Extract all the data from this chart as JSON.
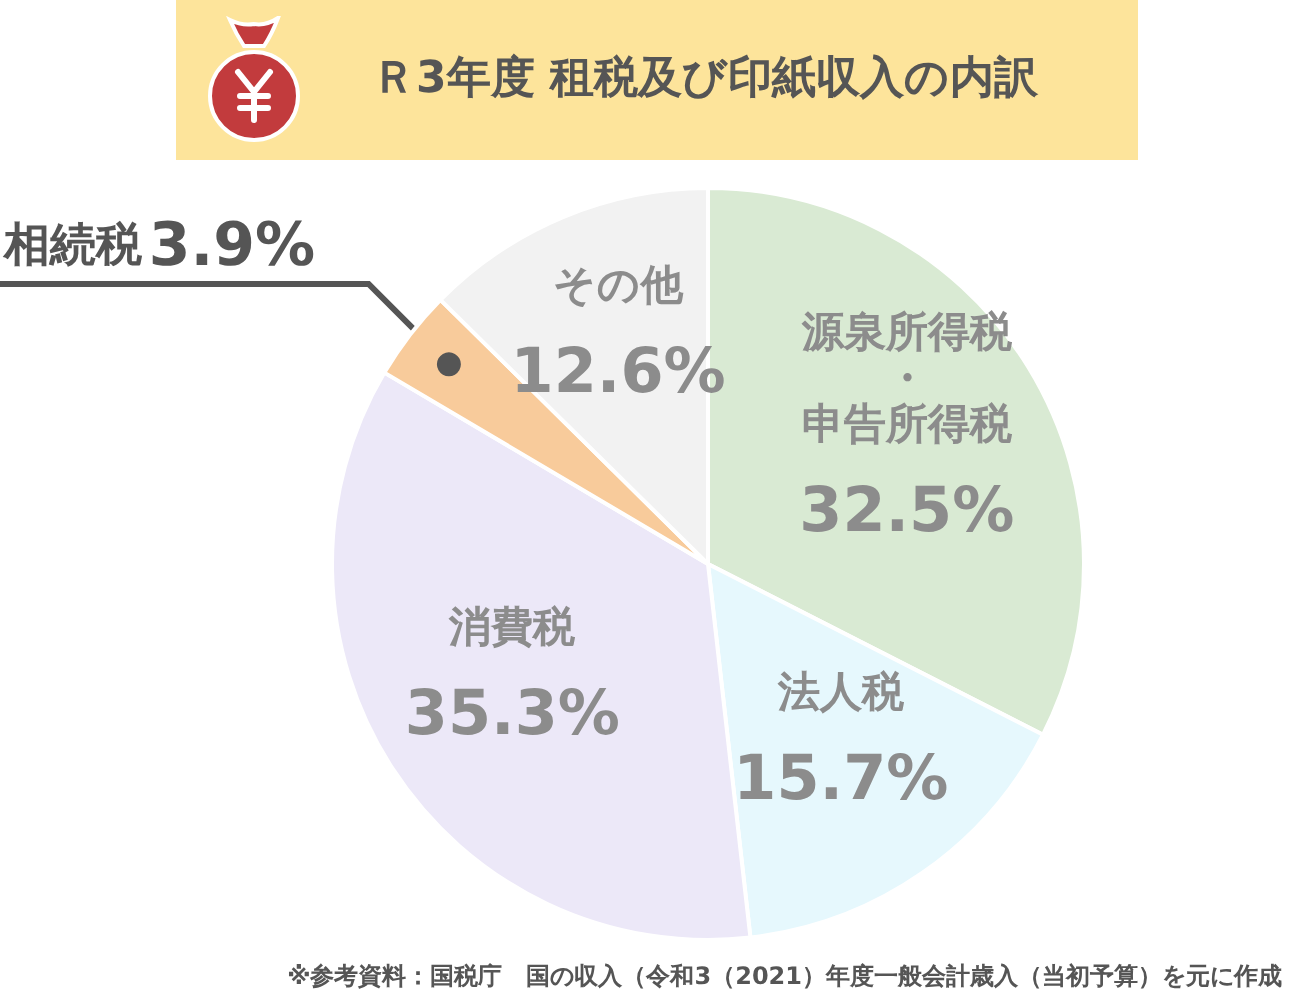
{
  "chart_data": {
    "type": "pie",
    "title": "Ｒ3年度 租税及び印紙収入の内訳",
    "categories": [
      "源泉所得税・申告所得税",
      "法人税",
      "消費税",
      "相続税",
      "その他"
    ],
    "values": [
      32.5,
      15.7,
      35.3,
      3.9,
      12.6
    ],
    "value_labels": [
      "32.5%",
      "15.7%",
      "35.3%",
      "3.9%",
      "12.6%"
    ],
    "colors": [
      "#d9ead3",
      "#e6f8fd",
      "#ece8f8",
      "#f8cb9b",
      "#f2f2f2"
    ],
    "annotations": [
      "※参考資料：国税庁　国の収入（令和3（2021）年度一般会計歳入（当初予算）を元に作成"
    ]
  }
}
